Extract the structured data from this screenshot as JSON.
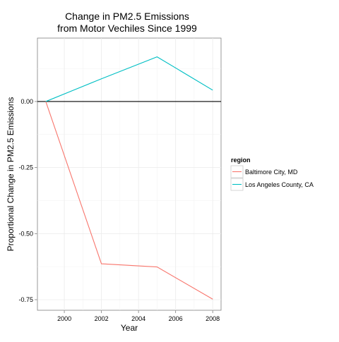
{
  "chart_data": {
    "type": "line",
    "title_lines": [
      "Change in PM2.5 Emissions",
      "from Motor Vechiles Since 1999"
    ],
    "xlabel": "Year",
    "ylabel": "Proportional Change in PM2.5 Emissions",
    "x_ticks": [
      2000,
      2002,
      2004,
      2006,
      2008
    ],
    "y_ticks": [
      0.0,
      -0.25,
      -0.5,
      -0.75
    ],
    "y_tick_labels": [
      "0.00",
      "-0.25",
      "-0.50",
      "-0.75"
    ],
    "xlim": [
      1998.55,
      2008.45
    ],
    "ylim": [
      -0.79,
      0.24
    ],
    "reference_line": 0.0,
    "grid": true,
    "legend": {
      "title": "region",
      "position": "right"
    },
    "series": [
      {
        "name": "Baltimore City, MD",
        "color": "#F8766D",
        "x": [
          1999,
          2002,
          2005,
          2008
        ],
        "y": [
          0.0,
          -0.614,
          -0.626,
          -0.748
        ]
      },
      {
        "name": "Los Angeles County, CA",
        "color": "#00BFC4",
        "x": [
          1999,
          2002,
          2005,
          2008
        ],
        "y": [
          0.0,
          0.086,
          0.169,
          0.043
        ]
      }
    ]
  }
}
